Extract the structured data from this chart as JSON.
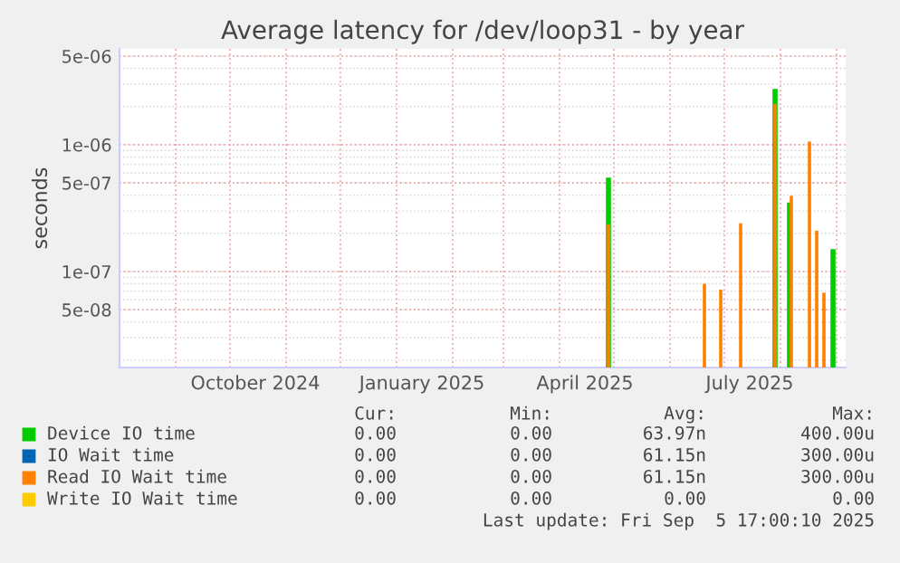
{
  "chart_data": {
    "type": "bar",
    "title": "Average latency for /dev/loop31 - by year",
    "ylabel": "seconds",
    "log": "y",
    "grid": true,
    "legend": "bottom",
    "xlim": [
      "2024-08-01",
      "2025-09-06"
    ],
    "xticks": [
      {
        "value": "2024-10-15",
        "label": "October 2024"
      },
      {
        "value": "2025-01-15",
        "label": "January 2025"
      },
      {
        "value": "2025-04-15",
        "label": "April 2025"
      },
      {
        "value": "2025-07-15",
        "label": "July 2025"
      }
    ],
    "ylim": [
      1.75e-08,
      5.7e-06
    ],
    "yticks": [
      {
        "value": 5e-08,
        "label": "5e-08"
      },
      {
        "value": 1e-07,
        "label": "1e-07"
      },
      {
        "value": 5e-07,
        "label": "5e-07"
      },
      {
        "value": 1e-06,
        "label": "1e-06"
      },
      {
        "value": 5e-06,
        "label": "5e-06"
      }
    ],
    "series": [
      {
        "name": "Device IO time",
        "color": "#00cc00",
        "x": [
          "2025-04-28",
          "2025-07-29",
          "2025-08-06",
          "2025-08-30"
        ],
        "values": [
          5.5e-07,
          2.75e-06,
          3.5e-07,
          1.5e-07
        ]
      },
      {
        "name": "IO Wait time",
        "color": "#0066b3"
      },
      {
        "name": "Read IO Wait time",
        "color": "#ff8000",
        "x": [
          "2025-04-28",
          "2025-06-20",
          "2025-06-29",
          "2025-07-10",
          "2025-07-29",
          "2025-08-07",
          "2025-08-17",
          "2025-08-21",
          "2025-08-25"
        ],
        "values": [
          2.35e-07,
          8e-08,
          7.2e-08,
          2.4e-07,
          2.1e-06,
          3.95e-07,
          1.06e-06,
          2.1e-07,
          6.8e-08
        ]
      },
      {
        "name": "Write IO Wait time",
        "color": "#ffcc00"
      }
    ],
    "annotations": [
      "Cur:",
      "Min:",
      "Avg:",
      "Max:",
      "0.00",
      "0.00",
      "63.97n",
      "400.00u",
      "0.00",
      "0.00",
      "61.15n",
      "300.00u",
      "0.00",
      "0.00",
      "61.15n",
      "300.00u",
      "0.00",
      "0.00",
      "0.00",
      "0.00",
      "Last update: Fri Sep  5 17:00:10 2025"
    ]
  }
}
